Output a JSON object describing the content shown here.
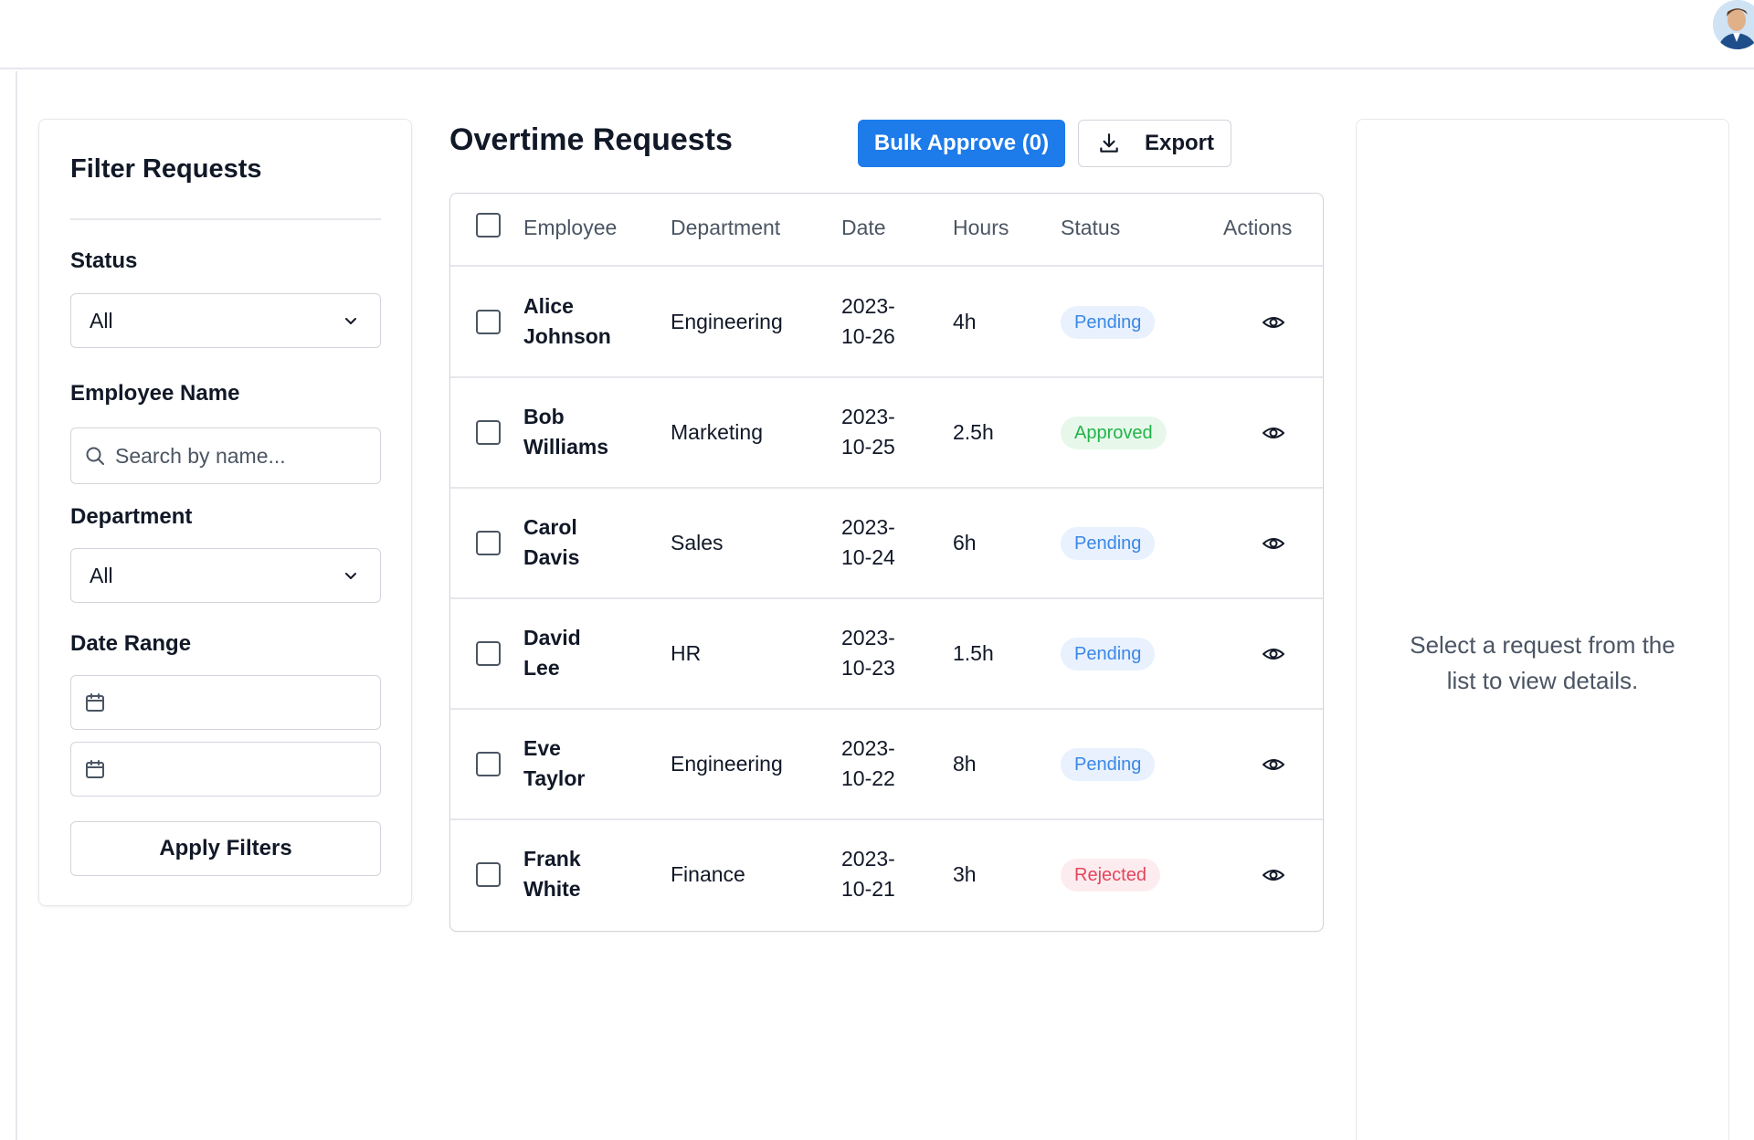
{
  "header": {
    "avatar_alt": "User avatar"
  },
  "filters": {
    "title": "Filter Requests",
    "status_label": "Status",
    "status_value": "All",
    "employee_label": "Employee Name",
    "employee_placeholder": "Search by name...",
    "department_label": "Department",
    "department_value": "All",
    "date_range_label": "Date Range",
    "apply_label": "Apply Filters"
  },
  "main": {
    "title": "Overtime Requests",
    "bulk_approve_label": "Bulk Approve (0)",
    "export_label": "Export"
  },
  "table": {
    "headers": [
      "Employee",
      "Department",
      "Date",
      "Hours",
      "Status",
      "Actions"
    ],
    "rows": [
      {
        "employee_first": "Alice",
        "employee_last": "Johnson",
        "department": "Engineering",
        "date_1": "2023-",
        "date_2": "10-26",
        "hours": "4h",
        "status": "Pending",
        "status_kind": "pending"
      },
      {
        "employee_first": "Bob",
        "employee_last": "Williams",
        "department": "Marketing",
        "date_1": "2023-",
        "date_2": "10-25",
        "hours": "2.5h",
        "status": "Approved",
        "status_kind": "approved"
      },
      {
        "employee_first": "Carol",
        "employee_last": "Davis",
        "department": "Sales",
        "date_1": "2023-",
        "date_2": "10-24",
        "hours": "6h",
        "status": "Pending",
        "status_kind": "pending"
      },
      {
        "employee_first": "David",
        "employee_last": "Lee",
        "department": "HR",
        "date_1": "2023-",
        "date_2": "10-23",
        "hours": "1.5h",
        "status": "Pending",
        "status_kind": "pending"
      },
      {
        "employee_first": "Eve",
        "employee_last": "Taylor",
        "department": "Engineering",
        "date_1": "2023-",
        "date_2": "10-22",
        "hours": "8h",
        "status": "Pending",
        "status_kind": "pending"
      },
      {
        "employee_first": "Frank",
        "employee_last": "White",
        "department": "Finance",
        "date_1": "2023-",
        "date_2": "10-21",
        "hours": "3h",
        "status": "Rejected",
        "status_kind": "rejected"
      }
    ]
  },
  "details": {
    "empty_message": "Select a request from the list to view details."
  },
  "colors": {
    "primary": "#1d7bea",
    "pending": "#3a87e6",
    "approved": "#22b34a",
    "rejected": "#e2465d"
  },
  "icons": {
    "chevron": "chevron-down-icon",
    "search": "search-icon",
    "calendar": "calendar-icon",
    "download": "download-icon",
    "view": "eye-icon"
  }
}
